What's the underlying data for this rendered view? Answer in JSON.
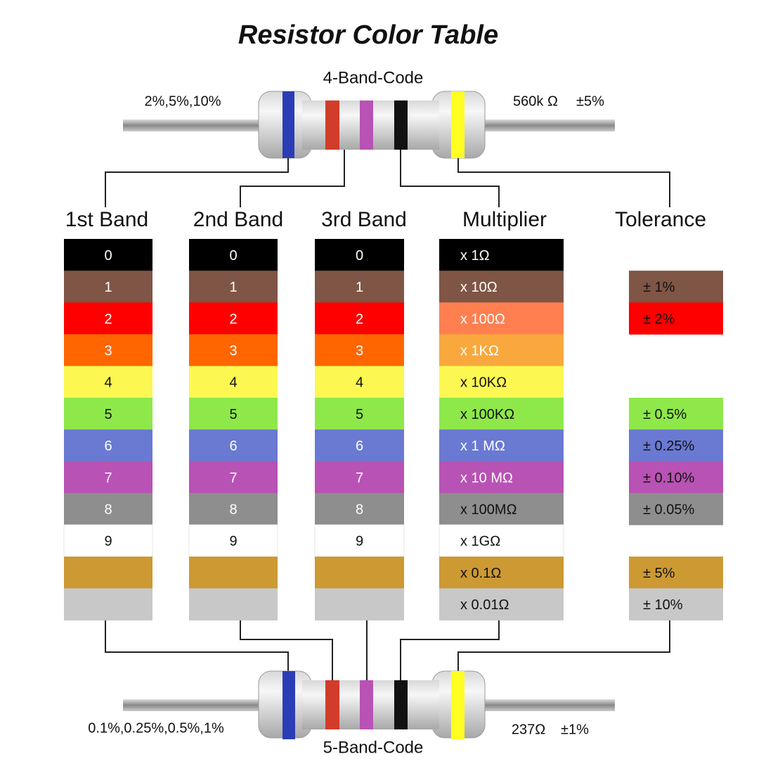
{
  "title": "Resistor Color Table",
  "four_band": {
    "label": "4-Band-Code",
    "tolerances": "2%,5%,10%",
    "value": "560k Ω",
    "tolerance": "±5%"
  },
  "five_band": {
    "label": "5-Band-Code",
    "tolerances": "0.1%,0.25%,0.5%,1%",
    "value": "237Ω",
    "tolerance": "±1%"
  },
  "table": {
    "headers": [
      "1st Band",
      "2nd Band",
      "3rd Band",
      "Multiplier",
      "Tolerance"
    ],
    "colors": [
      "#000000",
      "#7f5546",
      "#ff0000",
      "#ff6600",
      "#fdf752",
      "#8ee84a",
      "#6a79d2",
      "#b852b4",
      "#8e8e8e",
      "#ffffff",
      "#cc9933",
      "#c8c8c8"
    ],
    "multiplier_colors": [
      "#000000",
      "#7f5546",
      "#ff7f50",
      "#f9a83d",
      "#fdf752",
      "#8ee84a",
      "#6a79d2",
      "#b852b4",
      "#8e8e8e",
      "#ffffff",
      "#cc9933",
      "#c8c8c8"
    ],
    "digits": [
      "0",
      "1",
      "2",
      "3",
      "4",
      "5",
      "6",
      "7",
      "8",
      "9"
    ],
    "multipliers": [
      "x 1Ω",
      "x 10Ω",
      "x 100Ω",
      "x 1KΩ",
      "x 10KΩ",
      "x 100KΩ",
      "x 1 MΩ",
      "x 10 MΩ",
      "x 100MΩ",
      "x 1GΩ",
      "x 0.1Ω",
      "x 0.01Ω"
    ],
    "tolerance": [
      null,
      "± 1%",
      "± 2%",
      null,
      null,
      "± 0.5%",
      "± 0.25%",
      "± 0.10%",
      "± 0.05%",
      null,
      "± 5%",
      "± 10%"
    ]
  }
}
